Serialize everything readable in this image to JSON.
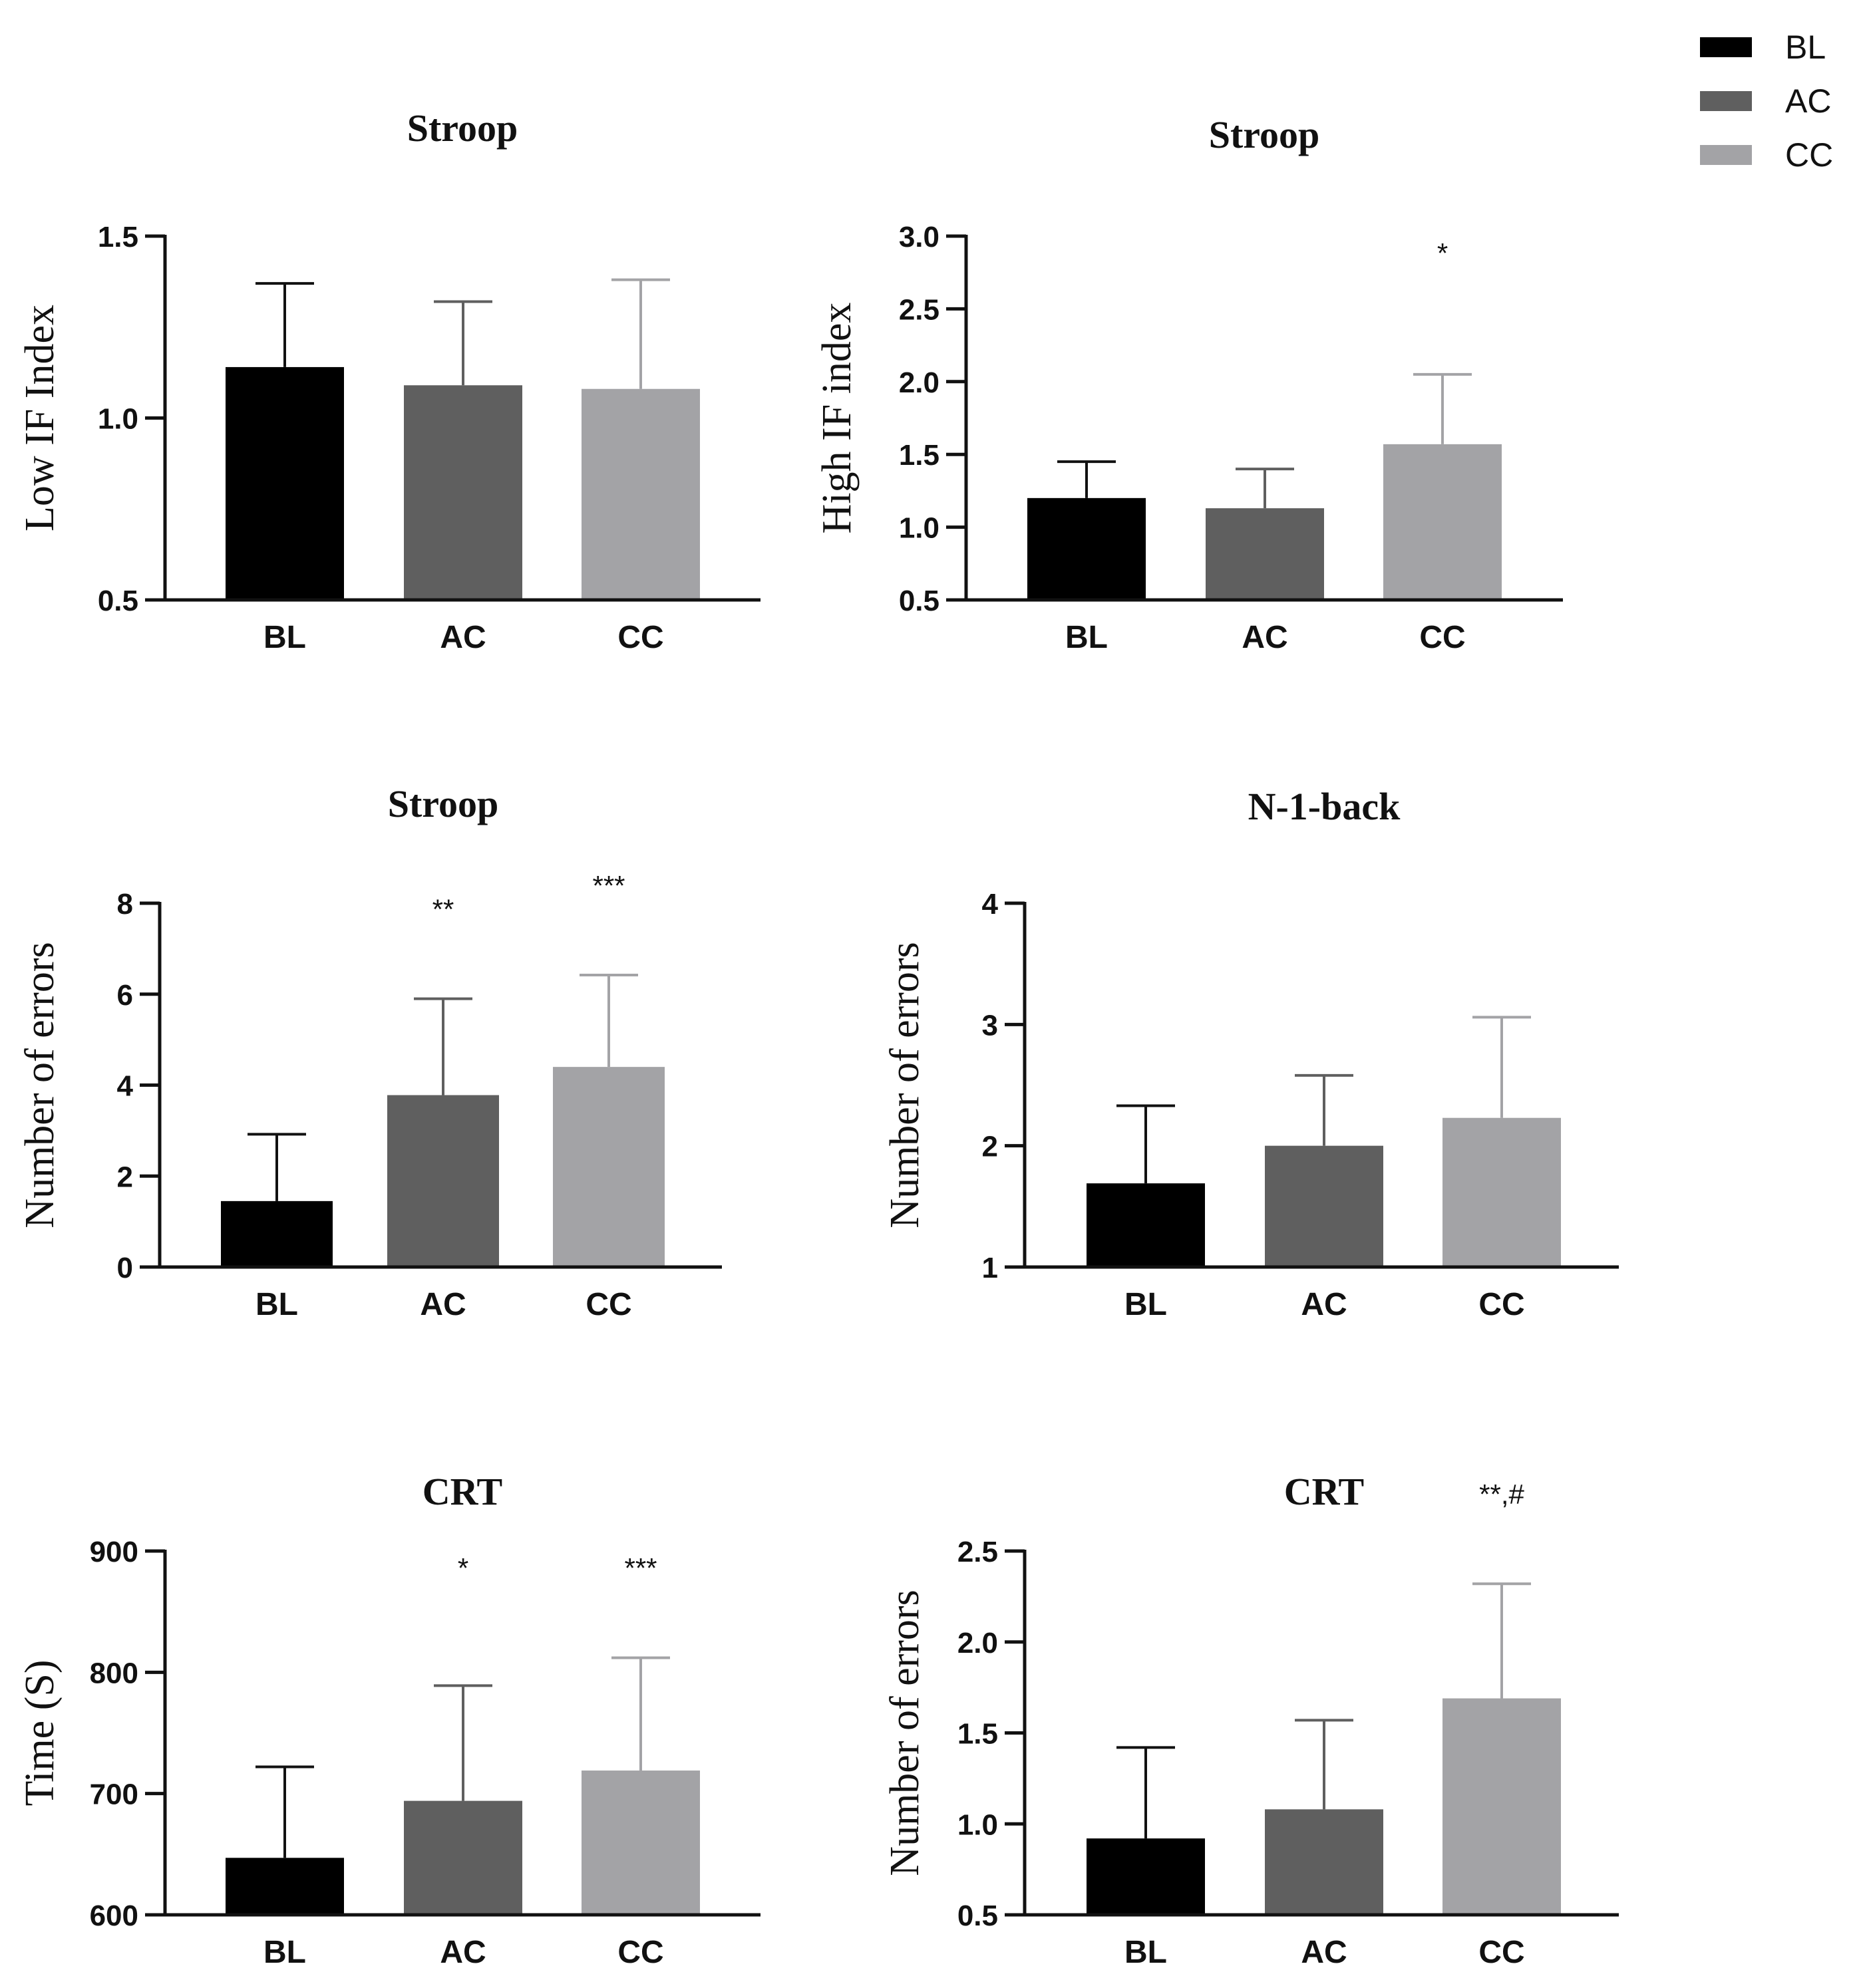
{
  "legend": {
    "placement": "top-right",
    "items": [
      {
        "label": "BL",
        "color": "#000000"
      },
      {
        "label": "AC",
        "color": "#5f5f5f"
      },
      {
        "label": "CC",
        "color": "#a3a3a6"
      }
    ]
  },
  "chart_data": [
    {
      "type": "bar",
      "title": "Stroop",
      "ylabel": "Low IF Index",
      "categories": [
        "BL",
        "AC",
        "CC"
      ],
      "values": [
        1.14,
        1.09,
        1.08
      ],
      "errors": [
        0.23,
        0.23,
        0.3
      ],
      "ylim": [
        0.5,
        1.5
      ],
      "yticks": [
        "0.5",
        "1.0",
        "1.5"
      ],
      "annotations": [
        "",
        "",
        ""
      ]
    },
    {
      "type": "bar",
      "title": "Stroop",
      "ylabel": "High IF index",
      "categories": [
        "BL",
        "AC",
        "CC"
      ],
      "values": [
        1.2,
        1.13,
        1.57
      ],
      "errors": [
        0.25,
        0.27,
        0.48
      ],
      "ylim": [
        0.5,
        3.0
      ],
      "yticks": [
        "0.5",
        "1.0",
        "1.5",
        "2.0",
        "2.5",
        "3.0"
      ],
      "annotations": [
        "",
        "",
        "*"
      ]
    },
    {
      "type": "bar",
      "title": "Stroop",
      "ylabel": "Number of errors",
      "categories": [
        "BL",
        "AC",
        "CC"
      ],
      "values": [
        1.45,
        3.78,
        4.4
      ],
      "errors": [
        1.47,
        2.12,
        2.02
      ],
      "ylim": [
        0,
        8
      ],
      "yticks": [
        "0",
        "2",
        "4",
        "6",
        "8"
      ],
      "annotations": [
        "",
        "**",
        "***"
      ]
    },
    {
      "type": "bar",
      "title": "N-1-back",
      "ylabel": "Number of errors",
      "categories": [
        "BL",
        "AC",
        "CC"
      ],
      "values": [
        1.69,
        2.0,
        2.23
      ],
      "errors": [
        0.64,
        0.58,
        0.83
      ],
      "ylim": [
        1,
        4
      ],
      "yticks": [
        "1",
        "2",
        "3",
        "4"
      ],
      "annotations": [
        "",
        "",
        ""
      ]
    },
    {
      "type": "bar",
      "title": "CRT",
      "ylabel": "Time (S)",
      "categories": [
        "BL",
        "AC",
        "CC"
      ],
      "values": [
        647,
        694,
        719
      ],
      "errors": [
        75,
        95,
        93
      ],
      "ylim": [
        600,
        900
      ],
      "yticks": [
        "600",
        "700",
        "800",
        "900"
      ],
      "annotations": [
        "",
        "*",
        "***"
      ]
    },
    {
      "type": "bar",
      "title": "CRT",
      "ylabel": "Number of errors",
      "categories": [
        "BL",
        "AC",
        "CC"
      ],
      "values": [
        0.92,
        1.08,
        1.69
      ],
      "errors": [
        0.5,
        0.49,
        0.63
      ],
      "ylim": [
        0.5,
        2.5
      ],
      "yticks": [
        "0.5",
        "1.0",
        "1.5",
        "2.0",
        "2.5"
      ],
      "annotations": [
        "",
        "",
        "**,#"
      ]
    }
  ]
}
